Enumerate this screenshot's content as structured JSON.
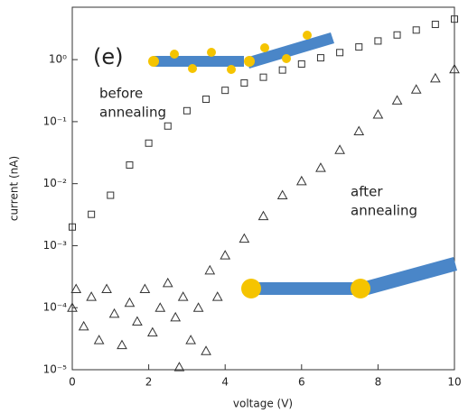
{
  "chart_data": {
    "type": "scatter",
    "x_label": "voltage (V)",
    "y_label": "current (nA)",
    "xlim": [
      0,
      10
    ],
    "xticks": [
      0,
      2,
      4,
      6,
      8,
      10
    ],
    "ylim": [
      1e-05,
      7
    ],
    "log_y": true,
    "yticks": [
      {
        "value": 1e-05,
        "label": "10⁻⁵"
      },
      {
        "value": 0.0001,
        "label": "10⁻⁴"
      },
      {
        "value": 0.001,
        "label": "10⁻³"
      },
      {
        "value": 0.01,
        "label": "10⁻²"
      },
      {
        "value": 0.1,
        "label": "10⁻¹"
      },
      {
        "value": 1,
        "label": "10⁰"
      }
    ],
    "annotations": [
      {
        "text": "(e)"
      },
      {
        "lines": [
          "before",
          "annealing"
        ]
      },
      {
        "lines": [
          "after",
          "annealing"
        ]
      }
    ],
    "series": [
      {
        "marker": "square",
        "color": "#333333",
        "x": [
          0,
          0.5,
          1,
          1.5,
          2,
          2.5,
          3,
          3.5,
          4,
          4.5,
          5,
          5.5,
          6,
          6.5,
          7,
          7.5,
          8,
          8.5,
          9,
          9.5,
          10
        ],
        "values": [
          0.002,
          0.0032,
          0.0065,
          0.02,
          0.045,
          0.085,
          0.15,
          0.23,
          0.32,
          0.42,
          0.52,
          0.68,
          0.85,
          1.07,
          1.3,
          1.6,
          2.0,
          2.5,
          3.0,
          3.7,
          4.5
        ]
      },
      {
        "marker": "triangle",
        "color": "#333333",
        "x": [
          0,
          0.1,
          0.3,
          0.5,
          0.7,
          0.9,
          1.1,
          1.3,
          1.5,
          1.7,
          1.9,
          2.1,
          2.3,
          2.5,
          2.7,
          2.8,
          2.9,
          3.1,
          3.3,
          3.5,
          3.6,
          3.8,
          4.0,
          4.5,
          5.0,
          5.5,
          6.0,
          6.5,
          7.0,
          7.5,
          8.0,
          8.5,
          9.0,
          9.5,
          10.0
        ],
        "values": [
          0.0001,
          0.0002,
          5e-05,
          0.00015,
          3e-05,
          0.0002,
          8e-05,
          2.5e-05,
          0.00012,
          6e-05,
          0.0002,
          4e-05,
          0.0001,
          0.00025,
          7e-05,
          1.1e-05,
          0.00015,
          3e-05,
          0.0001,
          2e-05,
          0.0004,
          0.00015,
          0.0007,
          0.0013,
          0.003,
          0.0065,
          0.011,
          0.018,
          0.035,
          0.07,
          0.13,
          0.22,
          0.33,
          0.5,
          0.7
        ]
      }
    ]
  }
}
